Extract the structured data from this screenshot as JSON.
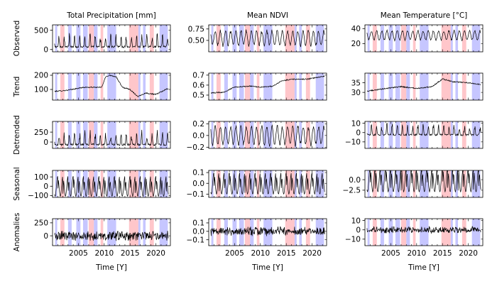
{
  "chart_data": {
    "type": "line",
    "columns": [
      {
        "title": "Total Precipitation [mm]",
        "key": "precip"
      },
      {
        "title": "Mean NDVI",
        "key": "ndvi"
      },
      {
        "title": "Mean Temperature [°C]",
        "key": "temp"
      }
    ],
    "rows": [
      {
        "label": "Observed",
        "key": "observed"
      },
      {
        "label": "Trend",
        "key": "trend"
      },
      {
        "label": "Detrended",
        "key": "detrended"
      },
      {
        "label": "Seasonal",
        "key": "seasonal"
      },
      {
        "label": "Anomalies",
        "key": "anomalies"
      }
    ],
    "xlabel": "Time [Y]",
    "xlim": [
      2000.0,
      2022.8
    ],
    "xticks": [
      2005,
      2010,
      2015,
      2020
    ],
    "shaded_periods": {
      "red": [
        [
          2001.5,
          2002.3
        ],
        [
          2007.0,
          2008.0
        ],
        [
          2009.3,
          2009.8
        ],
        [
          2014.8,
          2016.6
        ],
        [
          2018.8,
          2019.6
        ]
      ],
      "blue": [
        [
          2000.5,
          2000.9
        ],
        [
          2003.0,
          2003.7
        ],
        [
          2004.6,
          2005.4
        ],
        [
          2005.9,
          2006.8
        ],
        [
          2008.0,
          2008.7
        ],
        [
          2010.6,
          2012.3
        ],
        [
          2016.6,
          2017.0
        ],
        [
          2017.5,
          2018.0
        ],
        [
          2020.7,
          2022.3
        ]
      ]
    },
    "panels": {
      "precip": {
        "observed": {
          "ylim": [
            -60,
            640
          ],
          "yticks": [
            0,
            500
          ],
          "level": 150,
          "amp": 160,
          "style": "spiky"
        },
        "trend": {
          "ylim": [
            25,
            215
          ],
          "yticks": [
            100,
            200
          ],
          "curve": [
            [
              2000.0,
              85
            ],
            [
              2003.0,
              95
            ],
            [
              2006.0,
              115
            ],
            [
              2009.5,
              115
            ],
            [
              2010.3,
              190
            ],
            [
              2011.0,
              200
            ],
            [
              2012.3,
              190
            ],
            [
              2013.5,
              115
            ],
            [
              2015.0,
              100
            ],
            [
              2016.5,
              50
            ],
            [
              2018.0,
              75
            ],
            [
              2020.0,
              65
            ],
            [
              2022.5,
              110
            ]
          ]
        },
        "detrended": {
          "ylim": [
            -160,
            520
          ],
          "yticks": [
            0,
            250
          ],
          "level": 0,
          "amp": 160,
          "style": "spiky"
        },
        "seasonal": {
          "ylim": [
            -120,
            170
          ],
          "yticks": [
            -100,
            0,
            100
          ],
          "amp": 120,
          "style": "seasonal"
        },
        "anomalies": {
          "ylim": [
            -190,
            330
          ],
          "yticks": [
            0,
            250
          ],
          "amp": 110,
          "style": "noise"
        }
      },
      "ndvi": {
        "observed": {
          "ylim": [
            0.25,
            0.84
          ],
          "yticks": [
            0.5,
            0.75
          ],
          "level": 0.55,
          "amp": 0.15,
          "style": "wave"
        },
        "trend": {
          "ylim": [
            0.45,
            0.72
          ],
          "yticks": [
            0.5,
            0.6,
            0.7
          ],
          "curve": [
            [
              2000.0,
              0.52
            ],
            [
              2003.0,
              0.53
            ],
            [
              2005.0,
              0.58
            ],
            [
              2008.0,
              0.59
            ],
            [
              2010.0,
              0.58
            ],
            [
              2012.5,
              0.59
            ],
            [
              2014.0,
              0.64
            ],
            [
              2016.0,
              0.66
            ],
            [
              2019.0,
              0.66
            ],
            [
              2022.5,
              0.69
            ]
          ]
        },
        "detrended": {
          "ylim": [
            -0.22,
            0.24
          ],
          "yticks": [
            -0.2,
            0.0,
            0.2
          ],
          "level": 0,
          "amp": 0.15,
          "style": "wave"
        },
        "seasonal": {
          "ylim": [
            -0.13,
            0.12
          ],
          "yticks": [
            -0.1,
            0.0,
            0.1
          ],
          "amp": 0.11,
          "style": "seasonal"
        },
        "anomalies": {
          "ylim": [
            -0.17,
            0.15
          ],
          "yticks": [
            -0.1,
            0.0,
            0.1
          ],
          "amp": 0.06,
          "style": "noise"
        }
      },
      "temp": {
        "observed": {
          "ylim": [
            9,
            45
          ],
          "yticks": [
            20,
            40
          ],
          "level": 31,
          "amp": 6,
          "style": "wave"
        },
        "trend": {
          "ylim": [
            26,
            40
          ],
          "yticks": [
            30,
            35
          ],
          "curve": [
            [
              2000.0,
              30.5
            ],
            [
              2004.0,
              32
            ],
            [
              2007.0,
              33
            ],
            [
              2010.0,
              32
            ],
            [
              2013.0,
              33
            ],
            [
              2015.0,
              37
            ],
            [
              2017.0,
              35.5
            ],
            [
              2020.0,
              35
            ],
            [
              2022.5,
              34
            ]
          ]
        },
        "detrended": {
          "ylim": [
            -17,
            12
          ],
          "yticks": [
            -10,
            0,
            10
          ],
          "level": 0,
          "amp": 6,
          "style": "spiky"
        },
        "seasonal": {
          "ylim": [
            -4.2,
            2.2
          ],
          "yticks": [
            -2.5,
            0.0
          ],
          "amp": 3.2,
          "style": "seasonal"
        },
        "anomalies": {
          "ylim": [
            -17,
            12
          ],
          "yticks": [
            -10,
            0,
            10
          ],
          "amp": 4,
          "style": "noise"
        }
      }
    }
  }
}
